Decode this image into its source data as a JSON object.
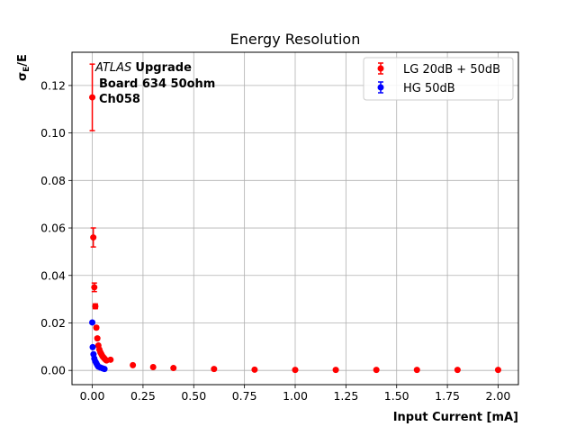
{
  "chart_data": {
    "type": "scatter",
    "title": "Energy Resolution",
    "xlabel": "Input Current [mA]",
    "ylabel_main": "σ",
    "ylabel_sub": "E",
    "ylabel_tail": "/E",
    "xlim": [
      -0.1,
      2.1
    ],
    "ylim": [
      -0.006,
      0.134
    ],
    "xticks": [
      0.0,
      0.25,
      0.5,
      0.75,
      1.0,
      1.25,
      1.5,
      1.75,
      2.0
    ],
    "xtick_labels": [
      "0.00",
      "0.25",
      "0.50",
      "0.75",
      "1.00",
      "1.25",
      "1.50",
      "1.75",
      "2.00"
    ],
    "yticks": [
      0.0,
      0.02,
      0.04,
      0.06,
      0.08,
      0.1,
      0.12
    ],
    "ytick_labels": [
      "0.00",
      "0.02",
      "0.04",
      "0.06",
      "0.08",
      "0.10",
      "0.12"
    ],
    "grid": true,
    "legend_position": "top-right",
    "annotations": {
      "atlas": "ATLAS",
      "upgrade": "Upgrade",
      "board": "Board 634 50ohm",
      "channel": "Ch058"
    },
    "series": [
      {
        "name": "LG 20dB + 50dB",
        "color": "#ff0000",
        "x": [
          0.0,
          0.005,
          0.01,
          0.015,
          0.02,
          0.025,
          0.03,
          0.035,
          0.04,
          0.045,
          0.05,
          0.055,
          0.06,
          0.065,
          0.07,
          0.09,
          0.2,
          0.3,
          0.4,
          0.6,
          0.8,
          1.0,
          1.2,
          1.4,
          1.6,
          1.8,
          2.0
        ],
        "y": [
          0.115,
          0.056,
          0.035,
          0.027,
          0.018,
          0.0135,
          0.0105,
          0.0088,
          0.0076,
          0.0068,
          0.006,
          0.0055,
          0.005,
          0.0045,
          0.0042,
          0.0045,
          0.0022,
          0.0014,
          0.001,
          0.0006,
          0.0003,
          0.0002,
          0.0002,
          0.0002,
          0.0002,
          0.0002,
          0.0002
        ],
        "yerr": [
          0.014,
          0.004,
          0.0018,
          0.001,
          0.0006,
          0.0004,
          0.0003,
          0.0002,
          0.0002,
          0.0002,
          0.0002,
          0.0002,
          0.0001,
          0.0001,
          0.0001,
          0.0001,
          0.0001,
          0.0001,
          0.0001,
          0.0001,
          0.0001,
          0.0001,
          0.0001,
          0.0001,
          0.0001,
          0.0001,
          0.0001
        ]
      },
      {
        "name": "HG 50dB",
        "color": "#0000ff",
        "x": [
          0.0,
          0.002,
          0.006,
          0.01,
          0.015,
          0.02,
          0.025,
          0.03,
          0.04,
          0.05,
          0.06
        ],
        "y": [
          0.0202,
          0.0098,
          0.0068,
          0.005,
          0.0038,
          0.003,
          0.0022,
          0.0016,
          0.0012,
          0.0009,
          0.0006
        ],
        "yerr": [
          0.0005,
          0.0003,
          0.0002,
          0.0002,
          0.0001,
          0.0001,
          0.0001,
          0.0001,
          0.0001,
          0.0001,
          0.0001
        ]
      }
    ]
  }
}
